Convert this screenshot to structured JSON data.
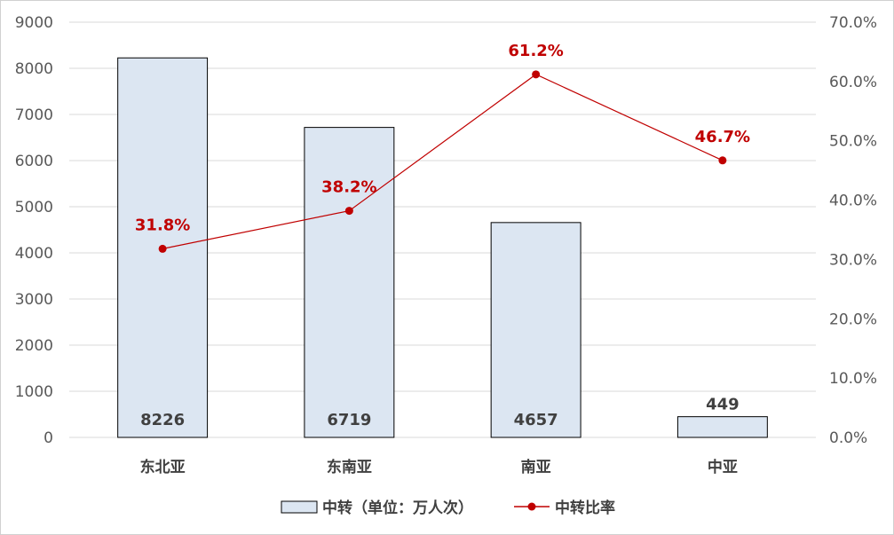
{
  "chart_data": {
    "type": "bar",
    "categories": [
      "东北亚",
      "东南亚",
      "南亚",
      "中亚"
    ],
    "series": [
      {
        "name": "中转（单位：万人次）",
        "type": "bar",
        "axis": "left",
        "values": [
          8226,
          6719,
          4657,
          449
        ],
        "labels": [
          "8226",
          "6719",
          "4657",
          "449"
        ],
        "color": "#dce6f2",
        "border_color": "#000000"
      },
      {
        "name": "中转比率",
        "type": "line",
        "axis": "right",
        "values": [
          31.8,
          38.2,
          61.2,
          46.7
        ],
        "labels": [
          "31.8%",
          "38.2%",
          "61.2%",
          "46.7%"
        ],
        "color": "#c00000"
      }
    ],
    "y_left": {
      "ylim": [
        0,
        9000
      ],
      "ticks": [
        "0",
        "1000",
        "2000",
        "3000",
        "4000",
        "5000",
        "6000",
        "7000",
        "8000",
        "9000"
      ]
    },
    "y_right": {
      "ylim": [
        0,
        70
      ],
      "ticks": [
        "0.0%",
        "10.0%",
        "20.0%",
        "30.0%",
        "40.0%",
        "50.0%",
        "60.0%",
        "70.0%"
      ]
    },
    "grid": true,
    "legend_position": "bottom"
  }
}
